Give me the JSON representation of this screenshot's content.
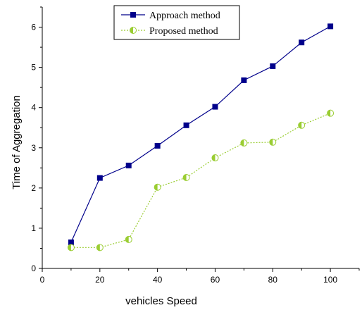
{
  "chart_data": {
    "type": "line",
    "xlabel": "vehicles Speed",
    "ylabel": "Time of Aggregation",
    "xlim": [
      0,
      110
    ],
    "ylim": [
      0,
      6.5
    ],
    "xticks": [
      0,
      20,
      40,
      60,
      80,
      100
    ],
    "yticks": [
      0,
      1,
      2,
      3,
      4,
      5,
      6
    ],
    "grid": false,
    "legend_position": "top-center",
    "series": [
      {
        "name": "Approach method",
        "color": "#00008b",
        "marker": "square",
        "line": "solid",
        "x": [
          10,
          20,
          30,
          40,
          50,
          60,
          70,
          80,
          90,
          100
        ],
        "y": [
          0.65,
          2.25,
          2.56,
          3.05,
          3.56,
          4.02,
          4.68,
          5.03,
          5.62,
          6.02
        ]
      },
      {
        "name": "Proposed method",
        "color": "#9acd32",
        "marker": "half-circle",
        "line": "dotted",
        "x": [
          10,
          20,
          30,
          40,
          50,
          60,
          70,
          80,
          90,
          100
        ],
        "y": [
          0.52,
          0.52,
          0.72,
          2.02,
          2.26,
          2.75,
          3.12,
          3.14,
          3.56,
          3.86
        ]
      }
    ]
  }
}
